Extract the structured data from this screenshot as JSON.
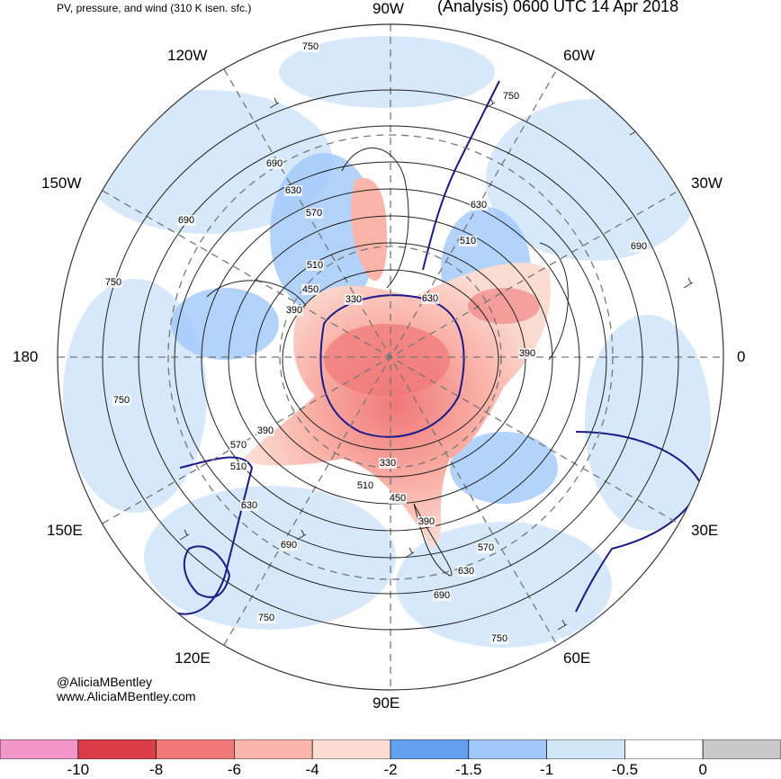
{
  "header": {
    "product": "PV, pressure, and wind (310 K isen. sfc.)",
    "valid": "(Analysis) 0600 UTC 14 Apr 2018"
  },
  "longitude_labels": {
    "lon_90w": "90W",
    "lon_60w": "60W",
    "lon_120w": "120W",
    "lon_150w": "150W",
    "lon_30w": "30W",
    "lon_180": "180",
    "lon_0": "0",
    "lon_150e": "150E",
    "lon_30e": "30E",
    "lon_120e": "120E",
    "lon_60e": "60E",
    "lon_90e": "90E"
  },
  "contour_labels": [
    {
      "label": "750"
    },
    {
      "label": "750"
    },
    {
      "label": "690"
    },
    {
      "label": "630"
    },
    {
      "label": "570"
    },
    {
      "label": "690"
    },
    {
      "label": "750"
    },
    {
      "label": "510"
    },
    {
      "label": "450"
    },
    {
      "label": "390"
    },
    {
      "label": "330"
    },
    {
      "label": "630"
    },
    {
      "label": "510"
    },
    {
      "label": "630"
    },
    {
      "label": "690"
    },
    {
      "label": "390"
    },
    {
      "label": "750"
    },
    {
      "label": "390"
    },
    {
      "label": "570"
    },
    {
      "label": "510"
    },
    {
      "label": "330"
    },
    {
      "label": "510"
    },
    {
      "label": "450"
    },
    {
      "label": "390"
    },
    {
      "label": "630"
    },
    {
      "label": "570"
    },
    {
      "label": "630"
    },
    {
      "label": "690"
    },
    {
      "label": "690"
    },
    {
      "label": "750"
    },
    {
      "label": "750"
    }
  ],
  "credits": {
    "twitter": "@AliciaMBentley",
    "website": "www.AliciaMBentley.com"
  },
  "colorbar": {
    "colors": [
      "#f596c8",
      "#dc3c46",
      "#f07878",
      "#fab4aa",
      "#fadcd2",
      "#64a0f0",
      "#a0c8fa",
      "#d2e6fa",
      "#ffffff",
      "#c8c8c8"
    ],
    "tick_labels": [
      "-10",
      "-8",
      "-6",
      "-4",
      "-2",
      "-1.5",
      "-1",
      "-0.5",
      "0"
    ]
  }
}
